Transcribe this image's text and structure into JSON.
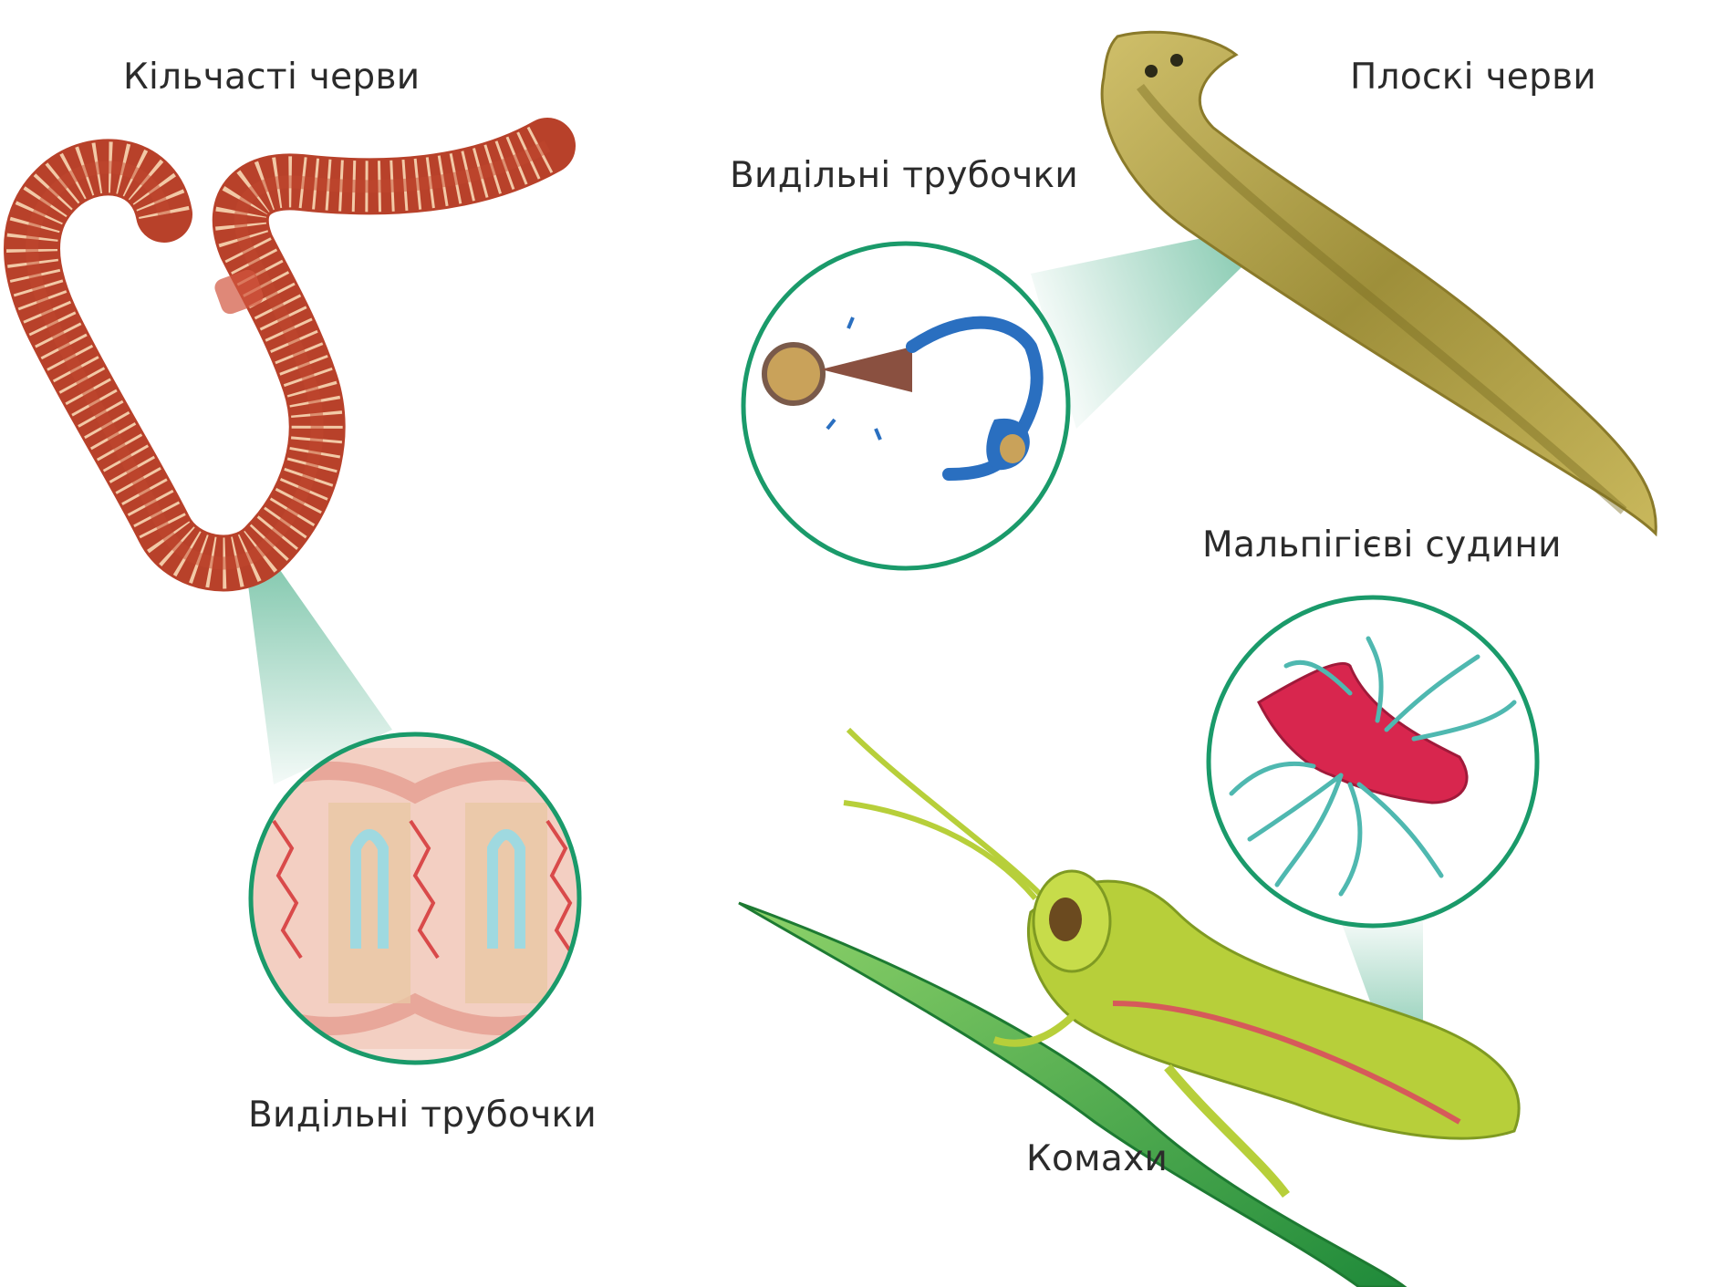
{
  "labels": {
    "annelids": "Кільчасті черви",
    "flatworms": "Плоскі черви",
    "flatworm_tubules": "Видільні трубочки",
    "annelid_tubules": "Видільні трубочки",
    "malpighian": "Мальпігієві судини",
    "insects": "Комахи"
  },
  "colors": {
    "callout_ring": "#1a9a6a",
    "earthworm": "#c24a2e",
    "flatworm": "#b8a64a",
    "grasshopper": "#b7cf3a",
    "leaf": "#2f9e3e",
    "malpighian_gut": "#d8264e",
    "malpighian_tubules": "#4fb8b0",
    "protonephridia": "#2a6fc0"
  },
  "icons": [
    "earthworm-illustration",
    "flatworm-illustration",
    "grasshopper-illustration",
    "nephridia-icon",
    "protonephridia-icon",
    "malpighian-tubules-icon"
  ]
}
